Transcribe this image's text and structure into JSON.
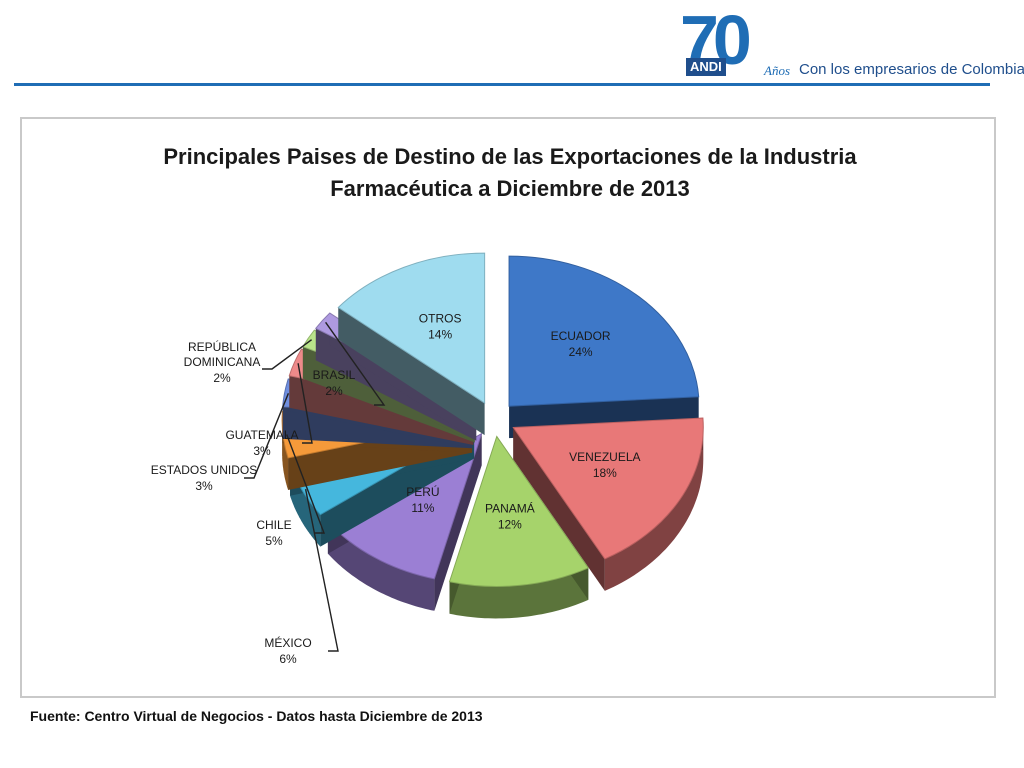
{
  "header": {
    "logo_number": "70",
    "logo_brand": "ANDI",
    "logo_anos": "Años",
    "tagline": "Con los empresarios de Colombia"
  },
  "chart_data": {
    "type": "pie",
    "title_lines": [
      "Principales Paises de Destino de las Exportaciones de la Industria",
      "Farmacéutica a Diciembre de 2013"
    ],
    "slices": [
      {
        "label": "ECUADOR",
        "value": 24,
        "display": "24%",
        "color": "#3e78c8"
      },
      {
        "label": "VENEZUELA",
        "value": 18,
        "display": "18%",
        "color": "#e87878"
      },
      {
        "label": "PANAMÁ",
        "value": 12,
        "display": "12%",
        "color": "#a6d36b"
      },
      {
        "label": "PERÚ",
        "value": 11,
        "display": "11%",
        "color": "#9b7fd4"
      },
      {
        "label": "MÉXICO",
        "value": 6,
        "display": "6%",
        "color": "#45b7dd"
      },
      {
        "label": "CHILE",
        "value": 5,
        "display": "5%",
        "color": "#f59a3a"
      },
      {
        "label": "ESTADOS UNIDOS",
        "value": 3,
        "display": "3%",
        "color": "#6f8fe0"
      },
      {
        "label": "GUATEMALA",
        "value": 3,
        "display": "3%",
        "color": "#ee8a8a"
      },
      {
        "label": "REPÚBLICA DOMINICANA",
        "value": 2,
        "display": "2%",
        "color": "#b9e38a"
      },
      {
        "label": "BRASIL",
        "value": 2,
        "display": "2%",
        "color": "#ae9ae0"
      },
      {
        "label": "OTROS",
        "value": 14,
        "display": "14%",
        "color": "#9fdcef"
      }
    ]
  },
  "source_text": "Fuente:  Centro Virtual de Negocios  - Datos hasta  Diciembre de 2013"
}
